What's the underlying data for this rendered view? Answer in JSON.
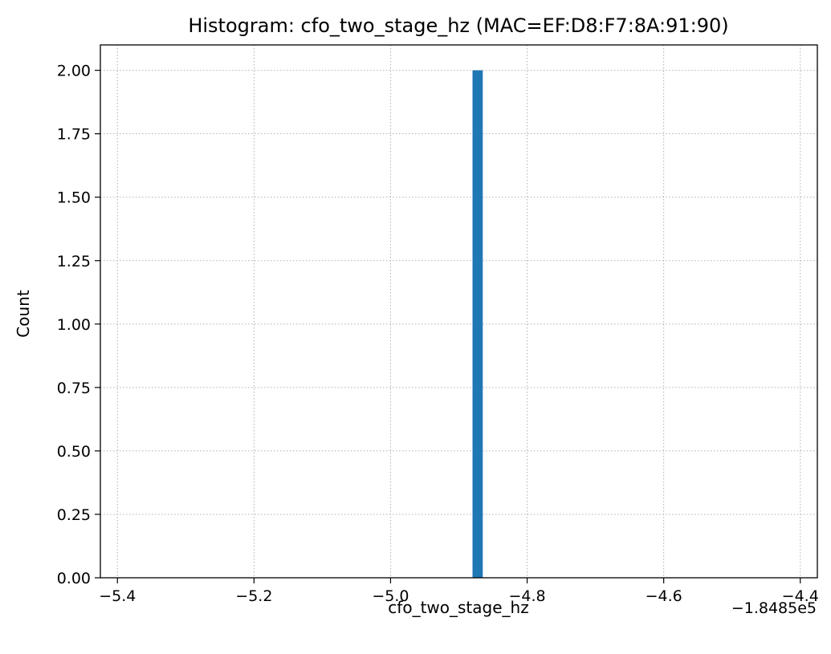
{
  "chart_data": {
    "type": "bar",
    "title": "Histogram: cfo_two_stage_hz (MAC=EF:D8:F7:8A:91:90)",
    "xlabel": "cfo_two_stage_hz",
    "ylabel": "Count",
    "x_offset_label": "−1.8485e5",
    "xlim": [
      -5.425,
      -4.375
    ],
    "ylim": [
      0,
      2.1
    ],
    "x_ticks": [
      -5.4,
      -5.2,
      -5.0,
      -4.8,
      -4.6,
      -4.4
    ],
    "x_tick_labels": [
      "−5.4",
      "−5.2",
      "−5.0",
      "−4.8",
      "−4.6",
      "−4.4"
    ],
    "y_ticks": [
      0,
      0.25,
      0.5,
      0.75,
      1.0,
      1.25,
      1.5,
      1.75,
      2.0
    ],
    "y_tick_labels": [
      "0.00",
      "0.25",
      "0.50",
      "0.75",
      "1.00",
      "1.25",
      "1.50",
      "1.75",
      "2.00"
    ],
    "grid": true,
    "bars": [
      {
        "x_start": -4.88,
        "x_end": -4.865,
        "value": 2
      }
    ],
    "bar_color": "#1f77b4"
  }
}
